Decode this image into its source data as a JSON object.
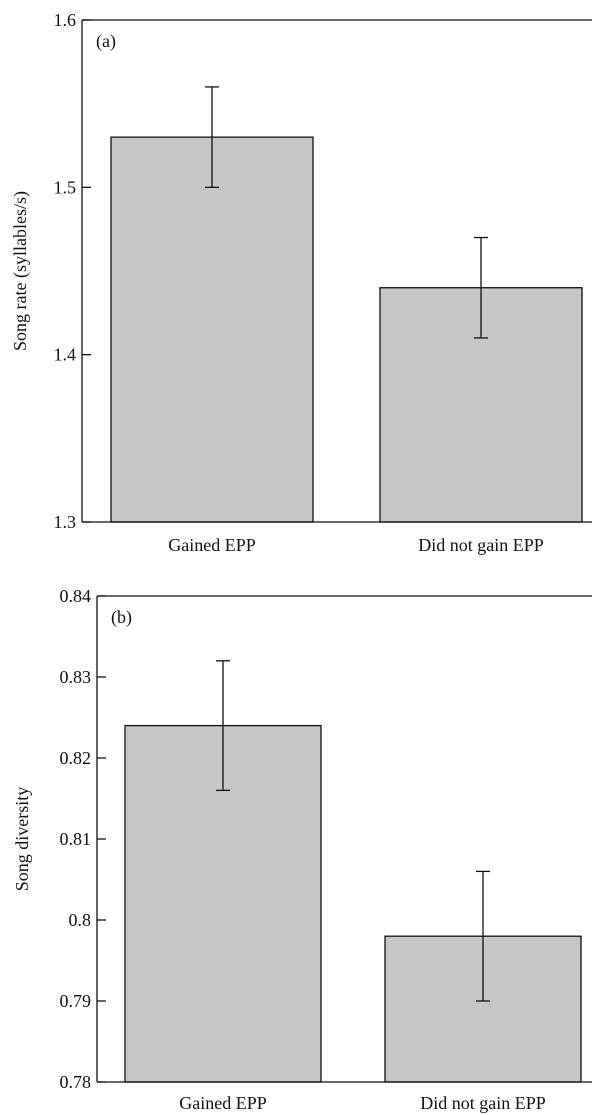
{
  "chart_data": [
    {
      "type": "bar",
      "panel_label": "(a)",
      "categories": [
        "Gained EPP",
        "Did not gain EPP"
      ],
      "values": [
        1.53,
        1.44
      ],
      "error_low": [
        1.5,
        1.41
      ],
      "error_high": [
        1.56,
        1.47
      ],
      "ylabel": "Song rate (syllables/s)",
      "ylim": [
        1.3,
        1.6
      ],
      "yticks": [
        "1.3",
        "1.4",
        "1.5",
        "1.6"
      ],
      "grid": false,
      "colors": {
        "bar": "#c6c6c6",
        "stroke": "#111111"
      }
    },
    {
      "type": "bar",
      "panel_label": "(b)",
      "categories": [
        "Gained EPP",
        "Did not gain EPP"
      ],
      "values": [
        0.824,
        0.798
      ],
      "error_low": [
        0.816,
        0.79
      ],
      "error_high": [
        0.832,
        0.806
      ],
      "ylabel": "Song diversity",
      "ylim": [
        0.78,
        0.84
      ],
      "yticks": [
        "0.78",
        "0.79",
        "0.8",
        "0.81",
        "0.82",
        "0.83",
        "0.84"
      ],
      "grid": false,
      "colors": {
        "bar": "#c6c6c6",
        "stroke": "#111111"
      }
    }
  ]
}
